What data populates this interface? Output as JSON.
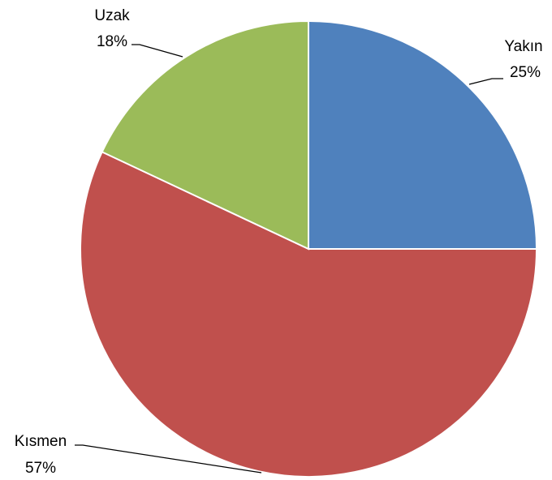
{
  "chart_data": {
    "type": "pie",
    "categories": [
      "Yakın",
      "Kısmen",
      "Uzak"
    ],
    "values": [
      25,
      57,
      18
    ],
    "value_labels": [
      "25%",
      "57%",
      "18%"
    ],
    "colors": [
      "#4f81bd",
      "#c0504d",
      "#9bbb59"
    ]
  }
}
